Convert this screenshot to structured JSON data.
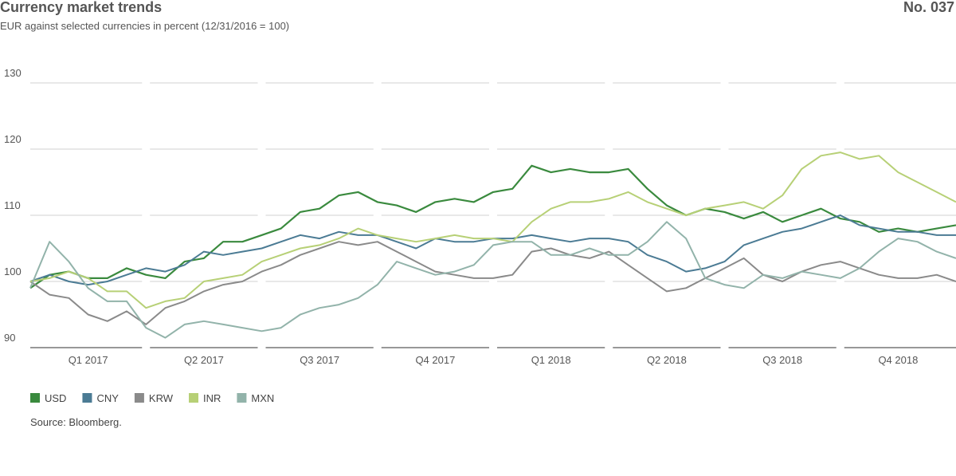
{
  "chart_data": {
    "type": "line",
    "title": "Currency market trends",
    "number": "No. 037",
    "subtitle": "EUR against selected currencies in percent (12/31/2016 = 100)",
    "source": "Source: Bloomberg.",
    "x": [
      0,
      0.5,
      1,
      1.5,
      2,
      2.5,
      3,
      3.5,
      4,
      4.5,
      5,
      5.5,
      6,
      6.5,
      7,
      7.5,
      8,
      8.5,
      9,
      9.5,
      10,
      10.5,
      11,
      11.5,
      12,
      12.5,
      13,
      13.5,
      14,
      14.5,
      15,
      15.5,
      16,
      16.5,
      17,
      17.5,
      18,
      18.5,
      19,
      19.5,
      20,
      20.5,
      21,
      21.5,
      22,
      22.5,
      23,
      23.5,
      24
    ],
    "xlim": [
      0,
      24
    ],
    "xticks": [
      {
        "value": 1.5,
        "label": "Q1 2017"
      },
      {
        "value": 4.5,
        "label": "Q2 2017"
      },
      {
        "value": 7.5,
        "label": "Q3 2017"
      },
      {
        "value": 10.5,
        "label": "Q4 2017"
      },
      {
        "value": 13.5,
        "label": "Q1 2018"
      },
      {
        "value": 16.5,
        "label": "Q2 2018"
      },
      {
        "value": 19.5,
        "label": "Q3 2018"
      },
      {
        "value": 22.5,
        "label": "Q4 2018"
      }
    ],
    "ylim": [
      90,
      130
    ],
    "yticks": [
      90,
      100,
      110,
      120,
      130
    ],
    "grid": true,
    "legend": "bottom-left",
    "series": [
      {
        "name": "USD",
        "color": "#3a8a3e",
        "values": [
          99,
          101,
          101.5,
          100.5,
          100.5,
          102,
          101,
          100.5,
          103,
          103.5,
          106,
          106,
          107,
          108,
          110.5,
          111,
          113,
          113.5,
          112,
          111.5,
          110.5,
          112,
          112.5,
          112,
          113.5,
          114,
          117.5,
          116.5,
          117,
          116.5,
          116.5,
          117,
          114,
          111.5,
          110,
          111,
          110.5,
          109.5,
          110.5,
          109,
          110,
          111,
          109.5,
          109,
          107.5,
          108,
          107.5,
          108,
          108.5
        ]
      },
      {
        "name": "CNY",
        "color": "#4b7b94",
        "values": [
          100,
          101,
          100,
          99.5,
          100,
          101,
          102,
          101.5,
          102.5,
          104.5,
          104,
          104.5,
          105,
          106,
          107,
          106.5,
          107.5,
          107,
          107,
          106,
          105,
          106.5,
          106,
          106,
          106.5,
          106.5,
          107,
          106.5,
          106,
          106.5,
          106.5,
          106,
          104,
          103,
          101.5,
          102,
          103,
          105.5,
          106.5,
          107.5,
          108,
          109,
          110,
          108.5,
          108,
          107.5,
          107.5,
          107,
          107
        ]
      },
      {
        "name": "KRW",
        "color": "#8a8a8a",
        "values": [
          100,
          98,
          97.5,
          95,
          94,
          95.5,
          93.5,
          96,
          97,
          98.5,
          99.5,
          100,
          101.5,
          102.5,
          104,
          105,
          106,
          105.5,
          106,
          104.5,
          103,
          101.5,
          101,
          100.5,
          100.5,
          101,
          104.5,
          105,
          104,
          103.5,
          104.5,
          102.5,
          100.5,
          98.5,
          99,
          100.5,
          102,
          103.5,
          101,
          100,
          101.5,
          102.5,
          103,
          102,
          101,
          100.5,
          100.5,
          101,
          100
        ]
      },
      {
        "name": "INR",
        "color": "#b7d076",
        "values": [
          100,
          100.5,
          101.5,
          100.5,
          98.5,
          98.5,
          96,
          97,
          97.5,
          100,
          100.5,
          101,
          103,
          104,
          105,
          105.5,
          106.5,
          108,
          107,
          106.5,
          106,
          106.5,
          107,
          106.5,
          106.5,
          106,
          109,
          111,
          112,
          112,
          112.5,
          113.5,
          112,
          111,
          110,
          111,
          111.5,
          112,
          111,
          113,
          117,
          119,
          119.5,
          118.5,
          119,
          116.5,
          115,
          113.5,
          112
        ]
      },
      {
        "name": "MXN",
        "color": "#92b3aa",
        "values": [
          99,
          106,
          103,
          99,
          97,
          97,
          93,
          91.5,
          93.5,
          94,
          93.5,
          93,
          92.5,
          93,
          95,
          96,
          96.5,
          97.5,
          99.5,
          103,
          102,
          101,
          101.5,
          102.5,
          105.5,
          106,
          106,
          104,
          104,
          105,
          104,
          104,
          106,
          109,
          106.5,
          100.5,
          99.5,
          99,
          101,
          100.5,
          101.5,
          101,
          100.5,
          102,
          104.5,
          106.5,
          106,
          104.5,
          103.5
        ]
      }
    ]
  }
}
